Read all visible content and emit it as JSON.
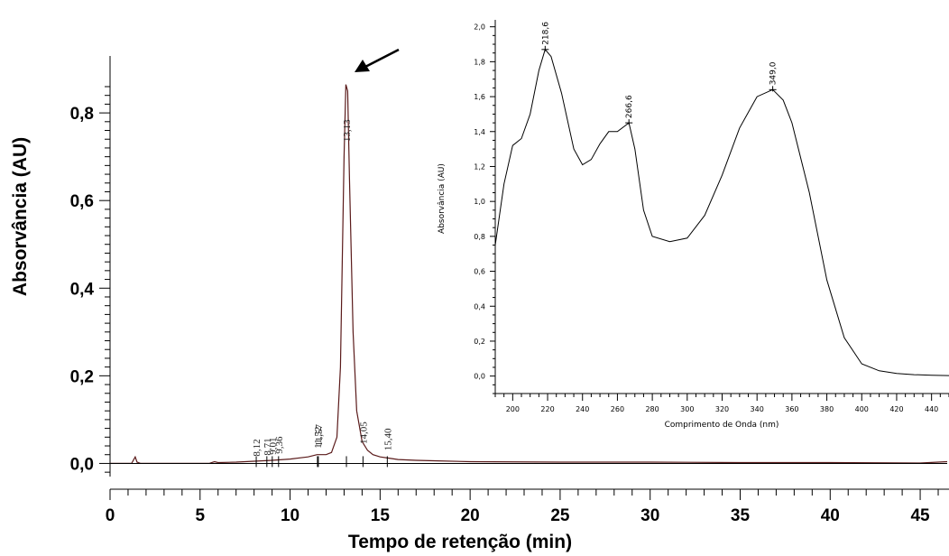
{
  "chart_data": [
    {
      "type": "line",
      "xlabel": "Tempo de retenção (min)",
      "ylabel": "Absorvância (AU)",
      "xlim": [
        0,
        46.5
      ],
      "ylim": [
        -0.03,
        0.93
      ],
      "x_ticks": [
        "0",
        "5",
        "10",
        "15",
        "20",
        "25",
        "30",
        "35",
        "40",
        "45"
      ],
      "y_ticks": [
        "0,0",
        "0,2",
        "0,4",
        "0,6",
        "0,8"
      ],
      "series": [
        {
          "x": [
            0,
            1.2,
            1.4,
            1.5,
            1.7,
            2.5,
            5.5,
            5.8,
            6.0,
            7.0,
            8.0,
            9.0,
            10.0,
            11.0,
            11.5,
            12.0,
            12.3,
            12.6,
            12.8,
            13.0,
            13.1,
            13.2,
            13.3,
            13.5,
            13.7,
            14.0,
            14.3,
            14.6,
            15.0,
            15.5,
            16.0,
            17.0,
            18.0,
            20.0,
            25.0,
            30.0,
            35.0,
            40.0,
            45.0,
            46.5
          ],
          "y": [
            0,
            0,
            0.015,
            0.003,
            0,
            0,
            0,
            0.004,
            0.002,
            0.003,
            0.005,
            0.007,
            0.01,
            0.015,
            0.02,
            0.02,
            0.025,
            0.06,
            0.22,
            0.7,
            0.865,
            0.85,
            0.65,
            0.3,
            0.12,
            0.05,
            0.03,
            0.02,
            0.015,
            0.012,
            0.009,
            0.007,
            0.006,
            0.004,
            0.003,
            0.003,
            0.002,
            0.002,
            0.001,
            0.004
          ]
        }
      ],
      "peak_labels": [
        "13,13",
        "14,05",
        "15,40",
        "11,57",
        "11,52",
        "9,36",
        "9,01",
        "8,71",
        "8,12"
      ],
      "annotations": [
        "arrow pointing at main peak"
      ]
    },
    {
      "type": "line",
      "xlabel": "Comprimento de Onda (nm)",
      "ylabel": "Absorvância (AU)",
      "xlim": [
        190,
        450
      ],
      "ylim": [
        -0.1,
        2.05
      ],
      "x_ticks": [
        "200",
        "220",
        "240",
        "260",
        "280",
        "300",
        "320",
        "340",
        "360",
        "380",
        "400",
        "420",
        "440"
      ],
      "y_ticks": [
        "0,0",
        "0,2",
        "0,4",
        "0,6",
        "0,8",
        "1,0",
        "1,2",
        "1,4",
        "1,6",
        "1,8",
        "2,0"
      ],
      "series": [
        {
          "x": [
            190,
            195,
            200,
            205,
            210,
            215,
            218.6,
            222,
            228,
            235,
            240,
            245,
            250,
            255,
            260,
            266.6,
            270,
            275,
            280,
            290,
            300,
            310,
            320,
            330,
            340,
            349,
            355,
            360,
            370,
            380,
            390,
            400,
            410,
            420,
            430,
            440,
            450
          ],
          "y": [
            0.75,
            1.1,
            1.32,
            1.36,
            1.5,
            1.75,
            1.87,
            1.83,
            1.62,
            1.3,
            1.21,
            1.24,
            1.33,
            1.4,
            1.4,
            1.45,
            1.3,
            0.95,
            0.8,
            0.77,
            0.79,
            0.92,
            1.15,
            1.42,
            1.6,
            1.64,
            1.58,
            1.45,
            1.05,
            0.55,
            0.22,
            0.07,
            0.03,
            0.015,
            0.008,
            0.005,
            0.003
          ]
        }
      ],
      "peak_labels": [
        "218,6",
        "266,6",
        "349,0"
      ]
    }
  ]
}
